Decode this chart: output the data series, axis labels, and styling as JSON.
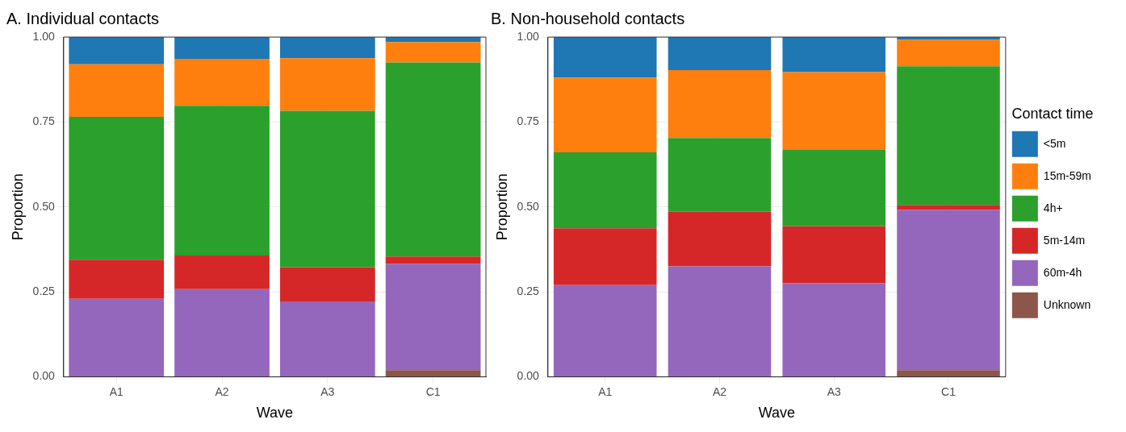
{
  "chart_data": [
    {
      "type": "bar",
      "title": "A. Individual contacts",
      "xlabel": "Wave",
      "ylabel": "Proportion",
      "categories": [
        "A1",
        "A2",
        "A3",
        "C1"
      ],
      "stacked": true,
      "grid": true,
      "legend": false,
      "ylim": [
        0,
        1
      ],
      "yticks": [
        {
          "value": 0,
          "label": "0.00"
        },
        {
          "value": 0.25,
          "label": "0.25"
        },
        {
          "value": 0.5,
          "label": "0.50"
        },
        {
          "value": 0.75,
          "label": "0.75"
        },
        {
          "value": 1,
          "label": "1.00"
        }
      ],
      "series": [
        {
          "color": "#8c564b",
          "values": [
            0,
            0,
            0,
            0.02
          ]
        },
        {
          "color": "#9467bd",
          "values": [
            0.23,
            0.258,
            0.222,
            0.313
          ]
        },
        {
          "color": "#d62728",
          "values": [
            0.115,
            0.099,
            0.101,
            0.021
          ]
        },
        {
          "color": "#2ca02c",
          "values": [
            0.42,
            0.441,
            0.46,
            0.571
          ]
        },
        {
          "color": "#ff7f0e",
          "values": [
            0.155,
            0.138,
            0.155,
            0.06
          ]
        },
        {
          "color": "#1f77b4",
          "values": [
            0.08,
            0.064,
            0.062,
            0.015
          ]
        }
      ]
    },
    {
      "type": "bar",
      "title": "B. Non-household contacts",
      "xlabel": "Wave",
      "ylabel": "Proportion",
      "legend_title": "Contact time",
      "categories": [
        "A1",
        "A2",
        "A3",
        "C1"
      ],
      "stacked": true,
      "grid": true,
      "legend": "right",
      "ylim": [
        0,
        1
      ],
      "yticks": [
        {
          "value": 0,
          "label": "0.00"
        },
        {
          "value": 0.25,
          "label": "0.25"
        },
        {
          "value": 0.5,
          "label": "0.50"
        },
        {
          "value": 0.75,
          "label": "0.75"
        },
        {
          "value": 1,
          "label": "1.00"
        }
      ],
      "series": [
        {
          "name": "Unknown",
          "color": "#8c564b",
          "values": [
            0,
            0,
            0,
            0.02
          ]
        },
        {
          "name": "60m-4h",
          "color": "#9467bd",
          "values": [
            0.27,
            0.325,
            0.276,
            0.471
          ]
        },
        {
          "name": "5m-14m",
          "color": "#d62728",
          "values": [
            0.167,
            0.161,
            0.167,
            0.015
          ]
        },
        {
          "name": "4h+",
          "color": "#2ca02c",
          "values": [
            0.224,
            0.217,
            0.225,
            0.408
          ]
        },
        {
          "name": "15m-59m",
          "color": "#ff7f0e",
          "values": [
            0.22,
            0.2,
            0.229,
            0.078
          ]
        },
        {
          "name": "<5m",
          "color": "#1f77b4",
          "values": [
            0.119,
            0.097,
            0.103,
            0.008
          ]
        }
      ]
    }
  ]
}
